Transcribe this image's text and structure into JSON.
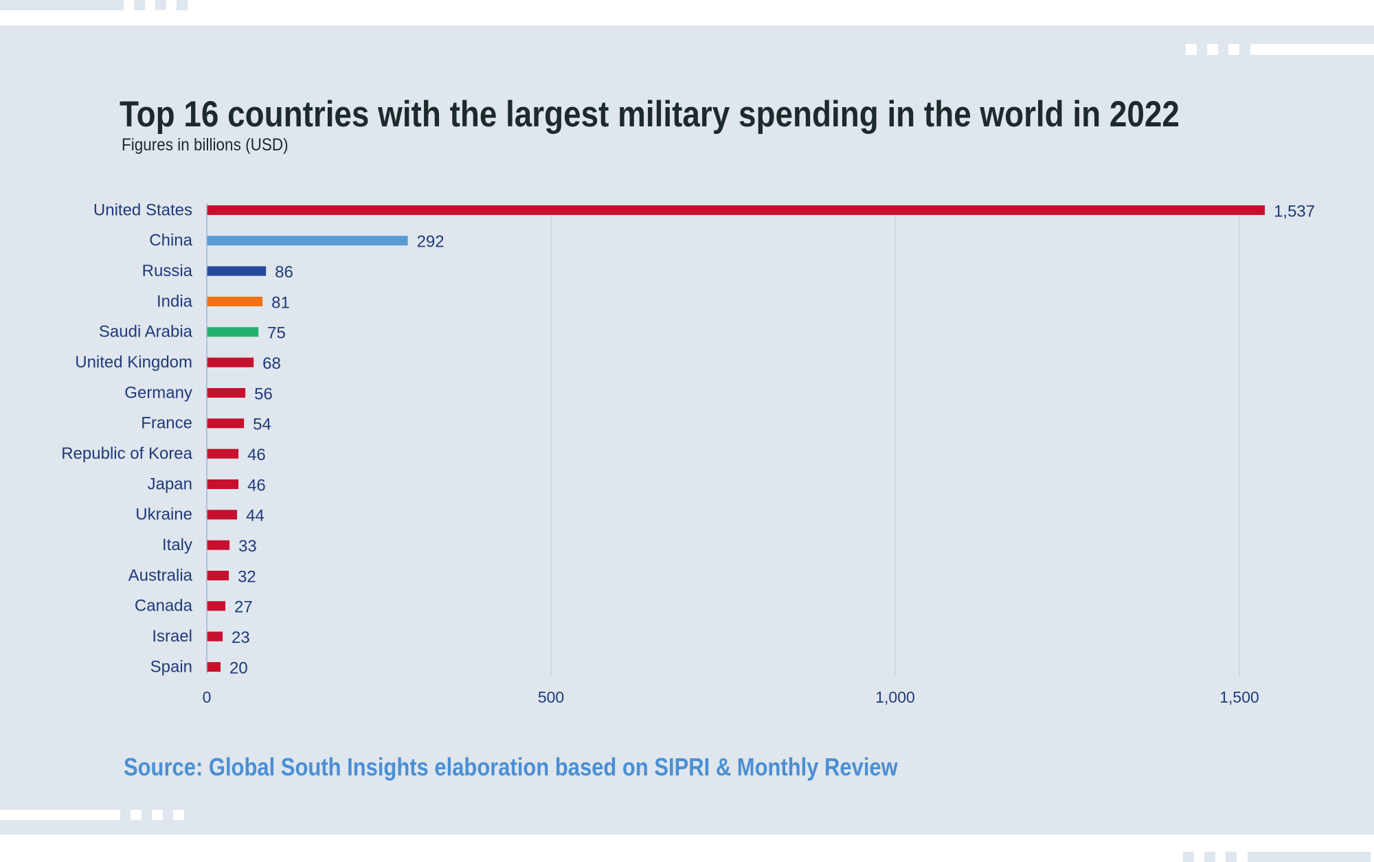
{
  "chart_data": {
    "type": "bar",
    "orientation": "horizontal",
    "title": "Top 16 countries with the largest military spending in the world in 2022",
    "subtitle": "Figures in billions (USD)",
    "xlabel": "",
    "ylabel": "",
    "xlim": [
      0,
      1600
    ],
    "xticks": [
      0,
      500,
      1000,
      1500
    ],
    "xtick_labels": [
      "0",
      "500",
      "1,000",
      "1,500"
    ],
    "grid": "vertical",
    "categories": [
      "United States",
      "China",
      "Russia",
      "India",
      "Saudi Arabia",
      "United Kingdom",
      "Germany",
      "France",
      "Republic of Korea",
      "Japan",
      "Ukraine",
      "Italy",
      "Australia",
      "Canada",
      "Israel",
      "Spain"
    ],
    "values": [
      1537,
      292,
      86,
      81,
      75,
      68,
      56,
      54,
      46,
      46,
      44,
      33,
      32,
      27,
      23,
      20
    ],
    "value_labels": [
      "1,537",
      "292",
      "86",
      "81",
      "75",
      "68",
      "56",
      "54",
      "46",
      "46",
      "44",
      "33",
      "32",
      "27",
      "23",
      "20"
    ],
    "colors": [
      "#c8102e",
      "#5b9bd5",
      "#26499a",
      "#f07317",
      "#23b26d",
      "#c8102e",
      "#c8102e",
      "#c8102e",
      "#c8102e",
      "#c8102e",
      "#c8102e",
      "#c8102e",
      "#c8102e",
      "#c8102e",
      "#c8102e",
      "#c8102e"
    ],
    "source": "Source: Global South Insights elaboration based on SIPRI & Monthly Review"
  },
  "colors": {
    "background": "#dfe6ed",
    "title": "#1c2a2b",
    "label": "#1f3a7a",
    "source": "#4a8fd4",
    "gridline": "#c9d5e0",
    "axis": "#9fb6d3"
  }
}
